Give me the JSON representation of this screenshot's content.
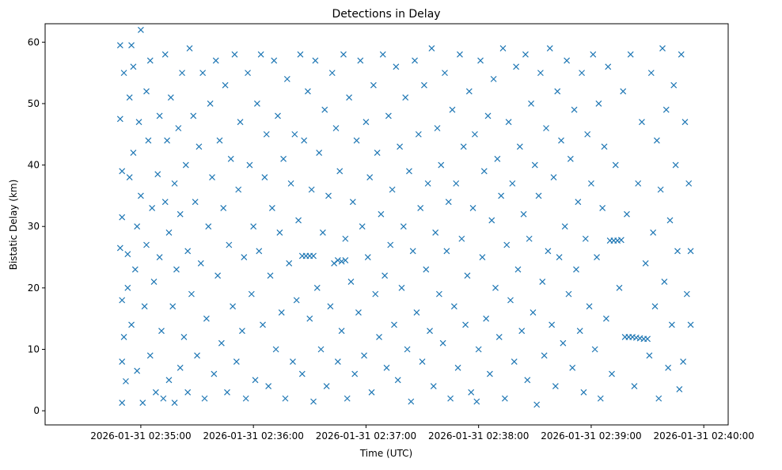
{
  "chart_data": {
    "type": "scatter",
    "title": "Detections in Delay",
    "xlabel": "Time (UTC)",
    "ylabel": "Bistatic Delay (km)",
    "x_unit": "seconds after 2026-01-31 02:35:00",
    "xlim": [
      -51,
      313
    ],
    "ylim": [
      -2.3,
      63
    ],
    "yticks": [
      0,
      10,
      20,
      30,
      40,
      50,
      60
    ],
    "xticks": [
      {
        "t": 0,
        "label": "2026-01-31 02:35:00"
      },
      {
        "t": 60,
        "label": "2026-01-31 02:36:00"
      },
      {
        "t": 120,
        "label": "2026-01-31 02:37:00"
      },
      {
        "t": 180,
        "label": "2026-01-31 02:38:00"
      },
      {
        "t": 240,
        "label": "2026-01-31 02:39:00"
      },
      {
        "t": 300,
        "label": "2026-01-31 02:40:00"
      }
    ],
    "marker": "x",
    "color": "#1f77b4",
    "grid": false,
    "points": [
      [
        -11,
        59.5
      ],
      [
        -11,
        47.5
      ],
      [
        -10,
        39
      ],
      [
        -10,
        31.5
      ],
      [
        -11,
        26.5
      ],
      [
        -10,
        18
      ],
      [
        -10,
        8
      ],
      [
        -10,
        1.3
      ],
      [
        -9,
        55
      ],
      [
        -9,
        12
      ],
      [
        -8,
        4.8
      ],
      [
        -7,
        25.5
      ],
      [
        -7,
        20
      ],
      [
        -6,
        51
      ],
      [
        -6,
        38
      ],
      [
        -5,
        59.5
      ],
      [
        -5,
        14
      ],
      [
        -4,
        56
      ],
      [
        -4,
        42
      ],
      [
        -3,
        23
      ],
      [
        -2,
        6.5
      ],
      [
        -2,
        30
      ],
      [
        -1,
        47
      ],
      [
        0,
        62
      ],
      [
        0,
        35
      ],
      [
        1,
        1.3
      ],
      [
        2,
        17
      ],
      [
        3,
        52
      ],
      [
        3,
        27
      ],
      [
        4,
        44
      ],
      [
        5,
        57
      ],
      [
        5,
        9
      ],
      [
        6,
        33
      ],
      [
        7,
        21
      ],
      [
        8,
        3
      ],
      [
        9,
        38.5
      ],
      [
        10,
        48
      ],
      [
        10,
        25
      ],
      [
        11,
        13
      ],
      [
        12,
        2
      ],
      [
        13,
        58
      ],
      [
        13,
        34
      ],
      [
        14,
        44
      ],
      [
        15,
        5
      ],
      [
        15,
        29
      ],
      [
        16,
        51
      ],
      [
        17,
        17
      ],
      [
        18,
        37
      ],
      [
        18,
        1.3
      ],
      [
        19,
        23
      ],
      [
        20,
        46
      ],
      [
        21,
        7
      ],
      [
        21,
        32
      ],
      [
        22,
        55
      ],
      [
        23,
        12
      ],
      [
        24,
        40
      ],
      [
        25,
        26
      ],
      [
        25,
        3
      ],
      [
        26,
        59
      ],
      [
        27,
        19
      ],
      [
        28,
        48
      ],
      [
        29,
        34
      ],
      [
        30,
        9
      ],
      [
        31,
        43
      ],
      [
        32,
        24
      ],
      [
        33,
        55
      ],
      [
        34,
        2
      ],
      [
        35,
        15
      ],
      [
        36,
        30
      ],
      [
        37,
        50
      ],
      [
        38,
        38
      ],
      [
        39,
        6
      ],
      [
        40,
        57
      ],
      [
        41,
        22
      ],
      [
        42,
        44
      ],
      [
        43,
        11
      ],
      [
        44,
        33
      ],
      [
        45,
        53
      ],
      [
        46,
        3
      ],
      [
        47,
        27
      ],
      [
        48,
        41
      ],
      [
        49,
        17
      ],
      [
        50,
        58
      ],
      [
        51,
        8
      ],
      [
        52,
        36
      ],
      [
        53,
        47
      ],
      [
        54,
        13
      ],
      [
        55,
        25
      ],
      [
        56,
        2
      ],
      [
        57,
        55
      ],
      [
        58,
        40
      ],
      [
        59,
        19
      ],
      [
        60,
        30
      ],
      [
        61,
        5
      ],
      [
        62,
        50
      ],
      [
        63,
        26
      ],
      [
        64,
        58
      ],
      [
        65,
        14
      ],
      [
        66,
        38
      ],
      [
        67,
        45
      ],
      [
        68,
        4
      ],
      [
        69,
        22
      ],
      [
        70,
        33
      ],
      [
        71,
        57
      ],
      [
        72,
        10
      ],
      [
        73,
        48
      ],
      [
        74,
        29
      ],
      [
        75,
        16
      ],
      [
        76,
        41
      ],
      [
        77,
        2
      ],
      [
        78,
        54
      ],
      [
        79,
        24
      ],
      [
        80,
        37
      ],
      [
        81,
        8
      ],
      [
        82,
        45
      ],
      [
        83,
        18
      ],
      [
        84,
        31
      ],
      [
        85,
        58
      ],
      [
        86,
        25.2
      ],
      [
        88,
        25.2
      ],
      [
        90,
        25.2
      ],
      [
        92,
        25.2
      ],
      [
        86,
        6
      ],
      [
        87,
        44
      ],
      [
        89,
        52
      ],
      [
        90,
        15
      ],
      [
        91,
        36
      ],
      [
        92,
        1.5
      ],
      [
        93,
        57
      ],
      [
        94,
        20
      ],
      [
        95,
        42
      ],
      [
        96,
        10
      ],
      [
        97,
        29
      ],
      [
        98,
        49
      ],
      [
        99,
        4
      ],
      [
        100,
        35
      ],
      [
        101,
        17
      ],
      [
        102,
        55
      ],
      [
        103,
        24
      ],
      [
        105,
        24.5
      ],
      [
        107,
        24.3
      ],
      [
        109,
        24.5
      ],
      [
        104,
        46
      ],
      [
        105,
        8
      ],
      [
        106,
        39
      ],
      [
        107,
        13
      ],
      [
        108,
        58
      ],
      [
        109,
        28
      ],
      [
        110,
        2
      ],
      [
        111,
        51
      ],
      [
        112,
        21
      ],
      [
        113,
        34
      ],
      [
        114,
        6
      ],
      [
        115,
        44
      ],
      [
        116,
        16
      ],
      [
        117,
        57
      ],
      [
        118,
        30
      ],
      [
        119,
        9
      ],
      [
        120,
        47
      ],
      [
        121,
        25
      ],
      [
        122,
        38
      ],
      [
        123,
        3
      ],
      [
        124,
        53
      ],
      [
        125,
        19
      ],
      [
        126,
        42
      ],
      [
        127,
        12
      ],
      [
        128,
        32
      ],
      [
        129,
        58
      ],
      [
        130,
        22
      ],
      [
        131,
        7
      ],
      [
        132,
        48
      ],
      [
        133,
        27
      ],
      [
        134,
        36
      ],
      [
        135,
        14
      ],
      [
        136,
        56
      ],
      [
        137,
        5
      ],
      [
        138,
        43
      ],
      [
        139,
        20
      ],
      [
        140,
        30
      ],
      [
        141,
        51
      ],
      [
        142,
        10
      ],
      [
        143,
        39
      ],
      [
        144,
        1.5
      ],
      [
        145,
        26
      ],
      [
        146,
        57
      ],
      [
        147,
        16
      ],
      [
        148,
        45
      ],
      [
        149,
        33
      ],
      [
        150,
        8
      ],
      [
        151,
        53
      ],
      [
        152,
        23
      ],
      [
        153,
        37
      ],
      [
        154,
        13
      ],
      [
        155,
        59
      ],
      [
        156,
        4
      ],
      [
        157,
        29
      ],
      [
        158,
        46
      ],
      [
        159,
        19
      ],
      [
        160,
        40
      ],
      [
        161,
        11
      ],
      [
        162,
        55
      ],
      [
        163,
        26
      ],
      [
        164,
        34
      ],
      [
        165,
        2
      ],
      [
        166,
        49
      ],
      [
        167,
        17
      ],
      [
        168,
        37
      ],
      [
        169,
        7
      ],
      [
        170,
        58
      ],
      [
        171,
        28
      ],
      [
        172,
        43
      ],
      [
        173,
        14
      ],
      [
        174,
        22
      ],
      [
        175,
        52
      ],
      [
        176,
        3
      ],
      [
        177,
        33
      ],
      [
        178,
        45
      ],
      [
        179,
        1.5
      ],
      [
        180,
        10
      ],
      [
        181,
        57
      ],
      [
        182,
        25
      ],
      [
        183,
        39
      ],
      [
        184,
        15
      ],
      [
        185,
        48
      ],
      [
        186,
        6
      ],
      [
        187,
        31
      ],
      [
        188,
        54
      ],
      [
        189,
        20
      ],
      [
        190,
        41
      ],
      [
        191,
        12
      ],
      [
        192,
        35
      ],
      [
        193,
        59
      ],
      [
        194,
        2
      ],
      [
        195,
        27
      ],
      [
        196,
        47
      ],
      [
        197,
        18
      ],
      [
        198,
        37
      ],
      [
        199,
        8
      ],
      [
        200,
        56
      ],
      [
        201,
        23
      ],
      [
        202,
        43
      ],
      [
        203,
        13
      ],
      [
        204,
        32
      ],
      [
        205,
        58
      ],
      [
        206,
        5
      ],
      [
        207,
        28
      ],
      [
        208,
        50
      ],
      [
        209,
        16
      ],
      [
        210,
        40
      ],
      [
        211,
        1
      ],
      [
        212,
        35
      ],
      [
        213,
        55
      ],
      [
        214,
        21
      ],
      [
        215,
        9
      ],
      [
        216,
        46
      ],
      [
        217,
        26
      ],
      [
        218,
        59
      ],
      [
        219,
        14
      ],
      [
        220,
        38
      ],
      [
        221,
        4
      ],
      [
        222,
        52
      ],
      [
        223,
        25
      ],
      [
        224,
        44
      ],
      [
        225,
        11
      ],
      [
        226,
        30
      ],
      [
        227,
        57
      ],
      [
        228,
        19
      ],
      [
        229,
        41
      ],
      [
        230,
        7
      ],
      [
        231,
        49
      ],
      [
        232,
        23
      ],
      [
        233,
        34
      ],
      [
        234,
        13
      ],
      [
        235,
        55
      ],
      [
        236,
        3
      ],
      [
        237,
        28
      ],
      [
        238,
        45
      ],
      [
        239,
        17
      ],
      [
        240,
        37
      ],
      [
        241,
        58
      ],
      [
        242,
        10
      ],
      [
        243,
        25
      ],
      [
        244,
        50
      ],
      [
        245,
        2
      ],
      [
        246,
        33
      ],
      [
        247,
        43
      ],
      [
        248,
        15
      ],
      [
        249,
        56
      ],
      [
        250,
        27.7
      ],
      [
        252,
        27.7
      ],
      [
        254,
        27.7
      ],
      [
        256,
        27.8
      ],
      [
        251,
        6
      ],
      [
        253,
        40
      ],
      [
        255,
        20
      ],
      [
        257,
        52
      ],
      [
        258,
        12
      ],
      [
        259,
        32
      ],
      [
        260,
        12
      ],
      [
        262,
        12
      ],
      [
        264,
        11.9
      ],
      [
        266,
        11.8
      ],
      [
        268,
        11.7
      ],
      [
        270,
        11.7
      ],
      [
        261,
        58
      ],
      [
        263,
        4
      ],
      [
        265,
        37
      ],
      [
        267,
        47
      ],
      [
        269,
        24
      ],
      [
        271,
        9
      ],
      [
        272,
        55
      ],
      [
        273,
        29
      ],
      [
        274,
        17
      ],
      [
        275,
        44
      ],
      [
        276,
        2
      ],
      [
        277,
        36
      ],
      [
        278,
        59
      ],
      [
        279,
        21
      ],
      [
        280,
        49
      ],
      [
        281,
        7
      ],
      [
        282,
        31
      ],
      [
        283,
        14
      ],
      [
        284,
        53
      ],
      [
        285,
        40
      ],
      [
        286,
        26
      ],
      [
        287,
        3.5
      ],
      [
        288,
        58
      ],
      [
        289,
        8
      ],
      [
        290,
        47
      ],
      [
        291,
        19
      ],
      [
        292,
        37
      ],
      [
        293,
        14
      ],
      [
        293,
        26
      ]
    ]
  }
}
